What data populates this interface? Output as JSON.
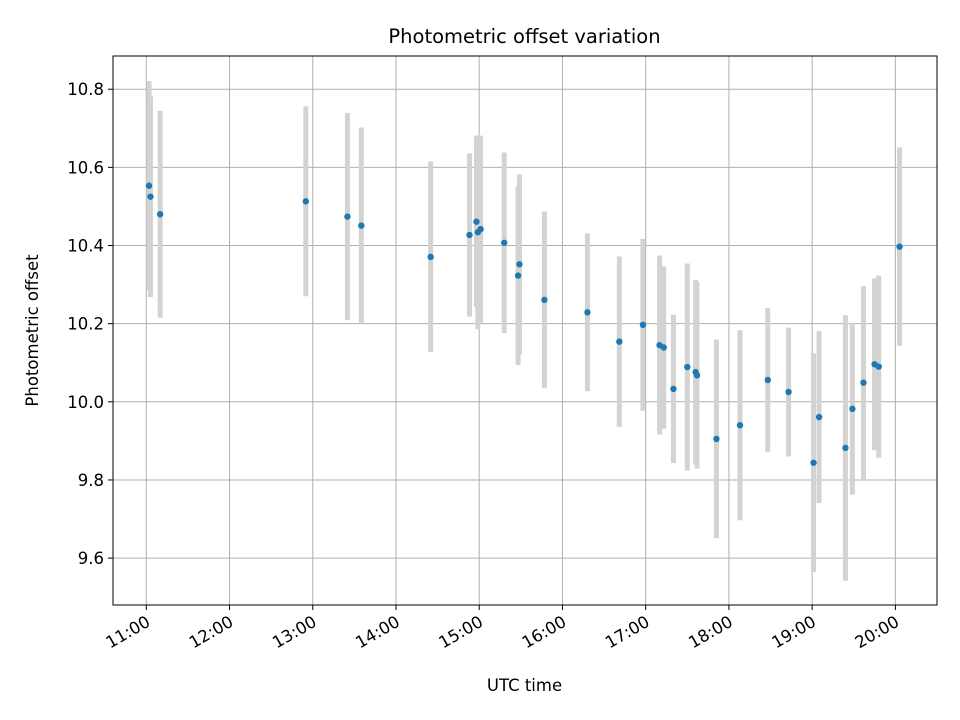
{
  "chart_data": {
    "type": "scatter",
    "title": "Photometric offset variation",
    "xlabel": "UTC time",
    "ylabel": "Photometric offset",
    "x_unit": "time of day (UTC)",
    "xlim": [
      "10:36",
      "20:30"
    ],
    "ylim": [
      9.48,
      10.885
    ],
    "x_ticks": [
      "11:00",
      "12:00",
      "13:00",
      "14:00",
      "15:00",
      "16:00",
      "17:00",
      "18:00",
      "19:00",
      "20:00"
    ],
    "y_ticks": [
      "9.6",
      "9.8",
      "10.0",
      "10.2",
      "10.4",
      "10.6",
      "10.8"
    ],
    "grid": true,
    "legend": "none",
    "colors": {
      "points": "#1f77b4",
      "error_bars": "#d3d3d3",
      "grid": "#b0b0b0"
    },
    "points": [
      {
        "x": "11:02",
        "y": 10.553,
        "err": 0.268
      },
      {
        "x": "11:03",
        "y": 10.525,
        "err": 0.257
      },
      {
        "x": "11:10",
        "y": 10.48,
        "err": 0.265
      },
      {
        "x": "12:55",
        "y": 10.513,
        "err": 0.243
      },
      {
        "x": "13:25",
        "y": 10.474,
        "err": 0.265
      },
      {
        "x": "13:35",
        "y": 10.451,
        "err": 0.251
      },
      {
        "x": "14:25",
        "y": 10.371,
        "err": 0.244
      },
      {
        "x": "14:53",
        "y": 10.427,
        "err": 0.209
      },
      {
        "x": "14:58",
        "y": 10.461,
        "err": 0.218
      },
      {
        "x": "14:59",
        "y": 10.434,
        "err": 0.248
      },
      {
        "x": "15:01",
        "y": 10.442,
        "err": 0.239
      },
      {
        "x": "15:18",
        "y": 10.407,
        "err": 0.231
      },
      {
        "x": "15:28",
        "y": 10.323,
        "err": 0.229
      },
      {
        "x": "15:29",
        "y": 10.352,
        "err": 0.23
      },
      {
        "x": "15:47",
        "y": 10.261,
        "err": 0.226
      },
      {
        "x": "16:18",
        "y": 10.229,
        "err": 0.202
      },
      {
        "x": "16:41",
        "y": 10.154,
        "err": 0.218
      },
      {
        "x": "16:58",
        "y": 10.197,
        "err": 0.22
      },
      {
        "x": "17:10",
        "y": 10.145,
        "err": 0.229
      },
      {
        "x": "17:13",
        "y": 10.139,
        "err": 0.208
      },
      {
        "x": "17:20",
        "y": 10.033,
        "err": 0.19
      },
      {
        "x": "17:30",
        "y": 10.089,
        "err": 0.265
      },
      {
        "x": "17:36",
        "y": 10.076,
        "err": 0.236
      },
      {
        "x": "17:37",
        "y": 10.068,
        "err": 0.239
      },
      {
        "x": "17:51",
        "y": 9.905,
        "err": 0.254
      },
      {
        "x": "18:08",
        "y": 9.94,
        "err": 0.243
      },
      {
        "x": "18:28",
        "y": 10.056,
        "err": 0.184
      },
      {
        "x": "18:43",
        "y": 10.025,
        "err": 0.165
      },
      {
        "x": "19:01",
        "y": 9.844,
        "err": 0.28
      },
      {
        "x": "19:05",
        "y": 9.961,
        "err": 0.22
      },
      {
        "x": "19:24",
        "y": 9.882,
        "err": 0.34
      },
      {
        "x": "19:29",
        "y": 9.982,
        "err": 0.22
      },
      {
        "x": "19:37",
        "y": 10.049,
        "err": 0.247
      },
      {
        "x": "19:45",
        "y": 10.096,
        "err": 0.22
      },
      {
        "x": "19:48",
        "y": 10.09,
        "err": 0.233
      },
      {
        "x": "20:03",
        "y": 10.397,
        "err": 0.254
      }
    ]
  }
}
